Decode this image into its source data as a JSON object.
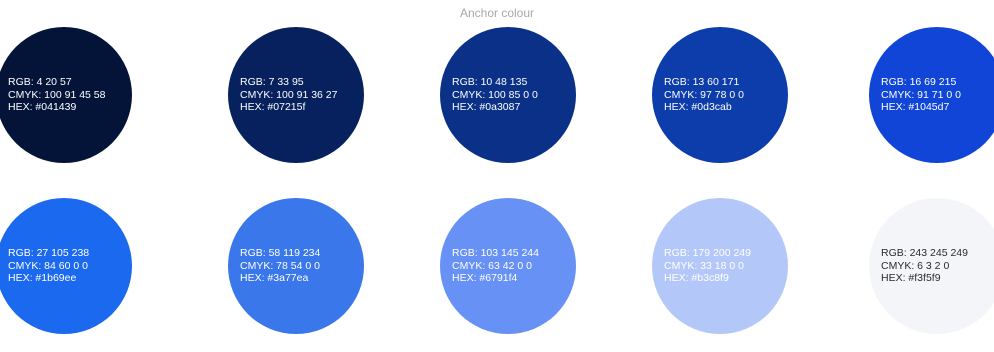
{
  "header": {
    "anchor_label": "Anchor colour"
  },
  "swatches": [
    {
      "color": "#041439",
      "rgb": "RGB: 4 20 57",
      "cmyk": "CMYK: 100 91 45 58",
      "hex": "HEX: #041439"
    },
    {
      "color": "#07215f",
      "rgb": "RGB: 7 33 95",
      "cmyk": "CMYK: 100 91 36 27",
      "hex": "HEX: #07215f"
    },
    {
      "color": "#0a3087",
      "rgb": "RGB: 10 48 135",
      "cmyk": "CMYK: 100 85 0 0",
      "hex": "HEX: #0a3087"
    },
    {
      "color": "#0d3cab",
      "rgb": "RGB: 13 60 171",
      "cmyk": "CMYK: 97 78 0 0",
      "hex": "HEX: #0d3cab"
    },
    {
      "color": "#1045d7",
      "rgb": "RGB: 16 69 215",
      "cmyk": "CMYK: 91 71 0 0",
      "hex": "HEX: #1045d7"
    },
    {
      "color": "#1b69ee",
      "rgb": "RGB: 27 105 238",
      "cmyk": "CMYK: 84 60 0 0",
      "hex": "HEX: #1b69ee"
    },
    {
      "color": "#3a77ea",
      "rgb": "RGB: 58 119 234",
      "cmyk": "CMYK: 78 54 0 0",
      "hex": "HEX: #3a77ea"
    },
    {
      "color": "#6791f4",
      "rgb": "RGB: 103 145 244",
      "cmyk": "CMYK: 63 42 0 0",
      "hex": "HEX: #6791f4"
    },
    {
      "color": "#b3c8f9",
      "rgb": "RGB: 179 200 249",
      "cmyk": "CMYK: 33 18 0 0",
      "hex": "HEX: #b3c8f9"
    },
    {
      "color": "#f3f5f9",
      "rgb": "RGB: 243 245 249",
      "cmyk": "CMYK: 6 3 2 0",
      "hex": "HEX: #f3f5f9"
    }
  ]
}
